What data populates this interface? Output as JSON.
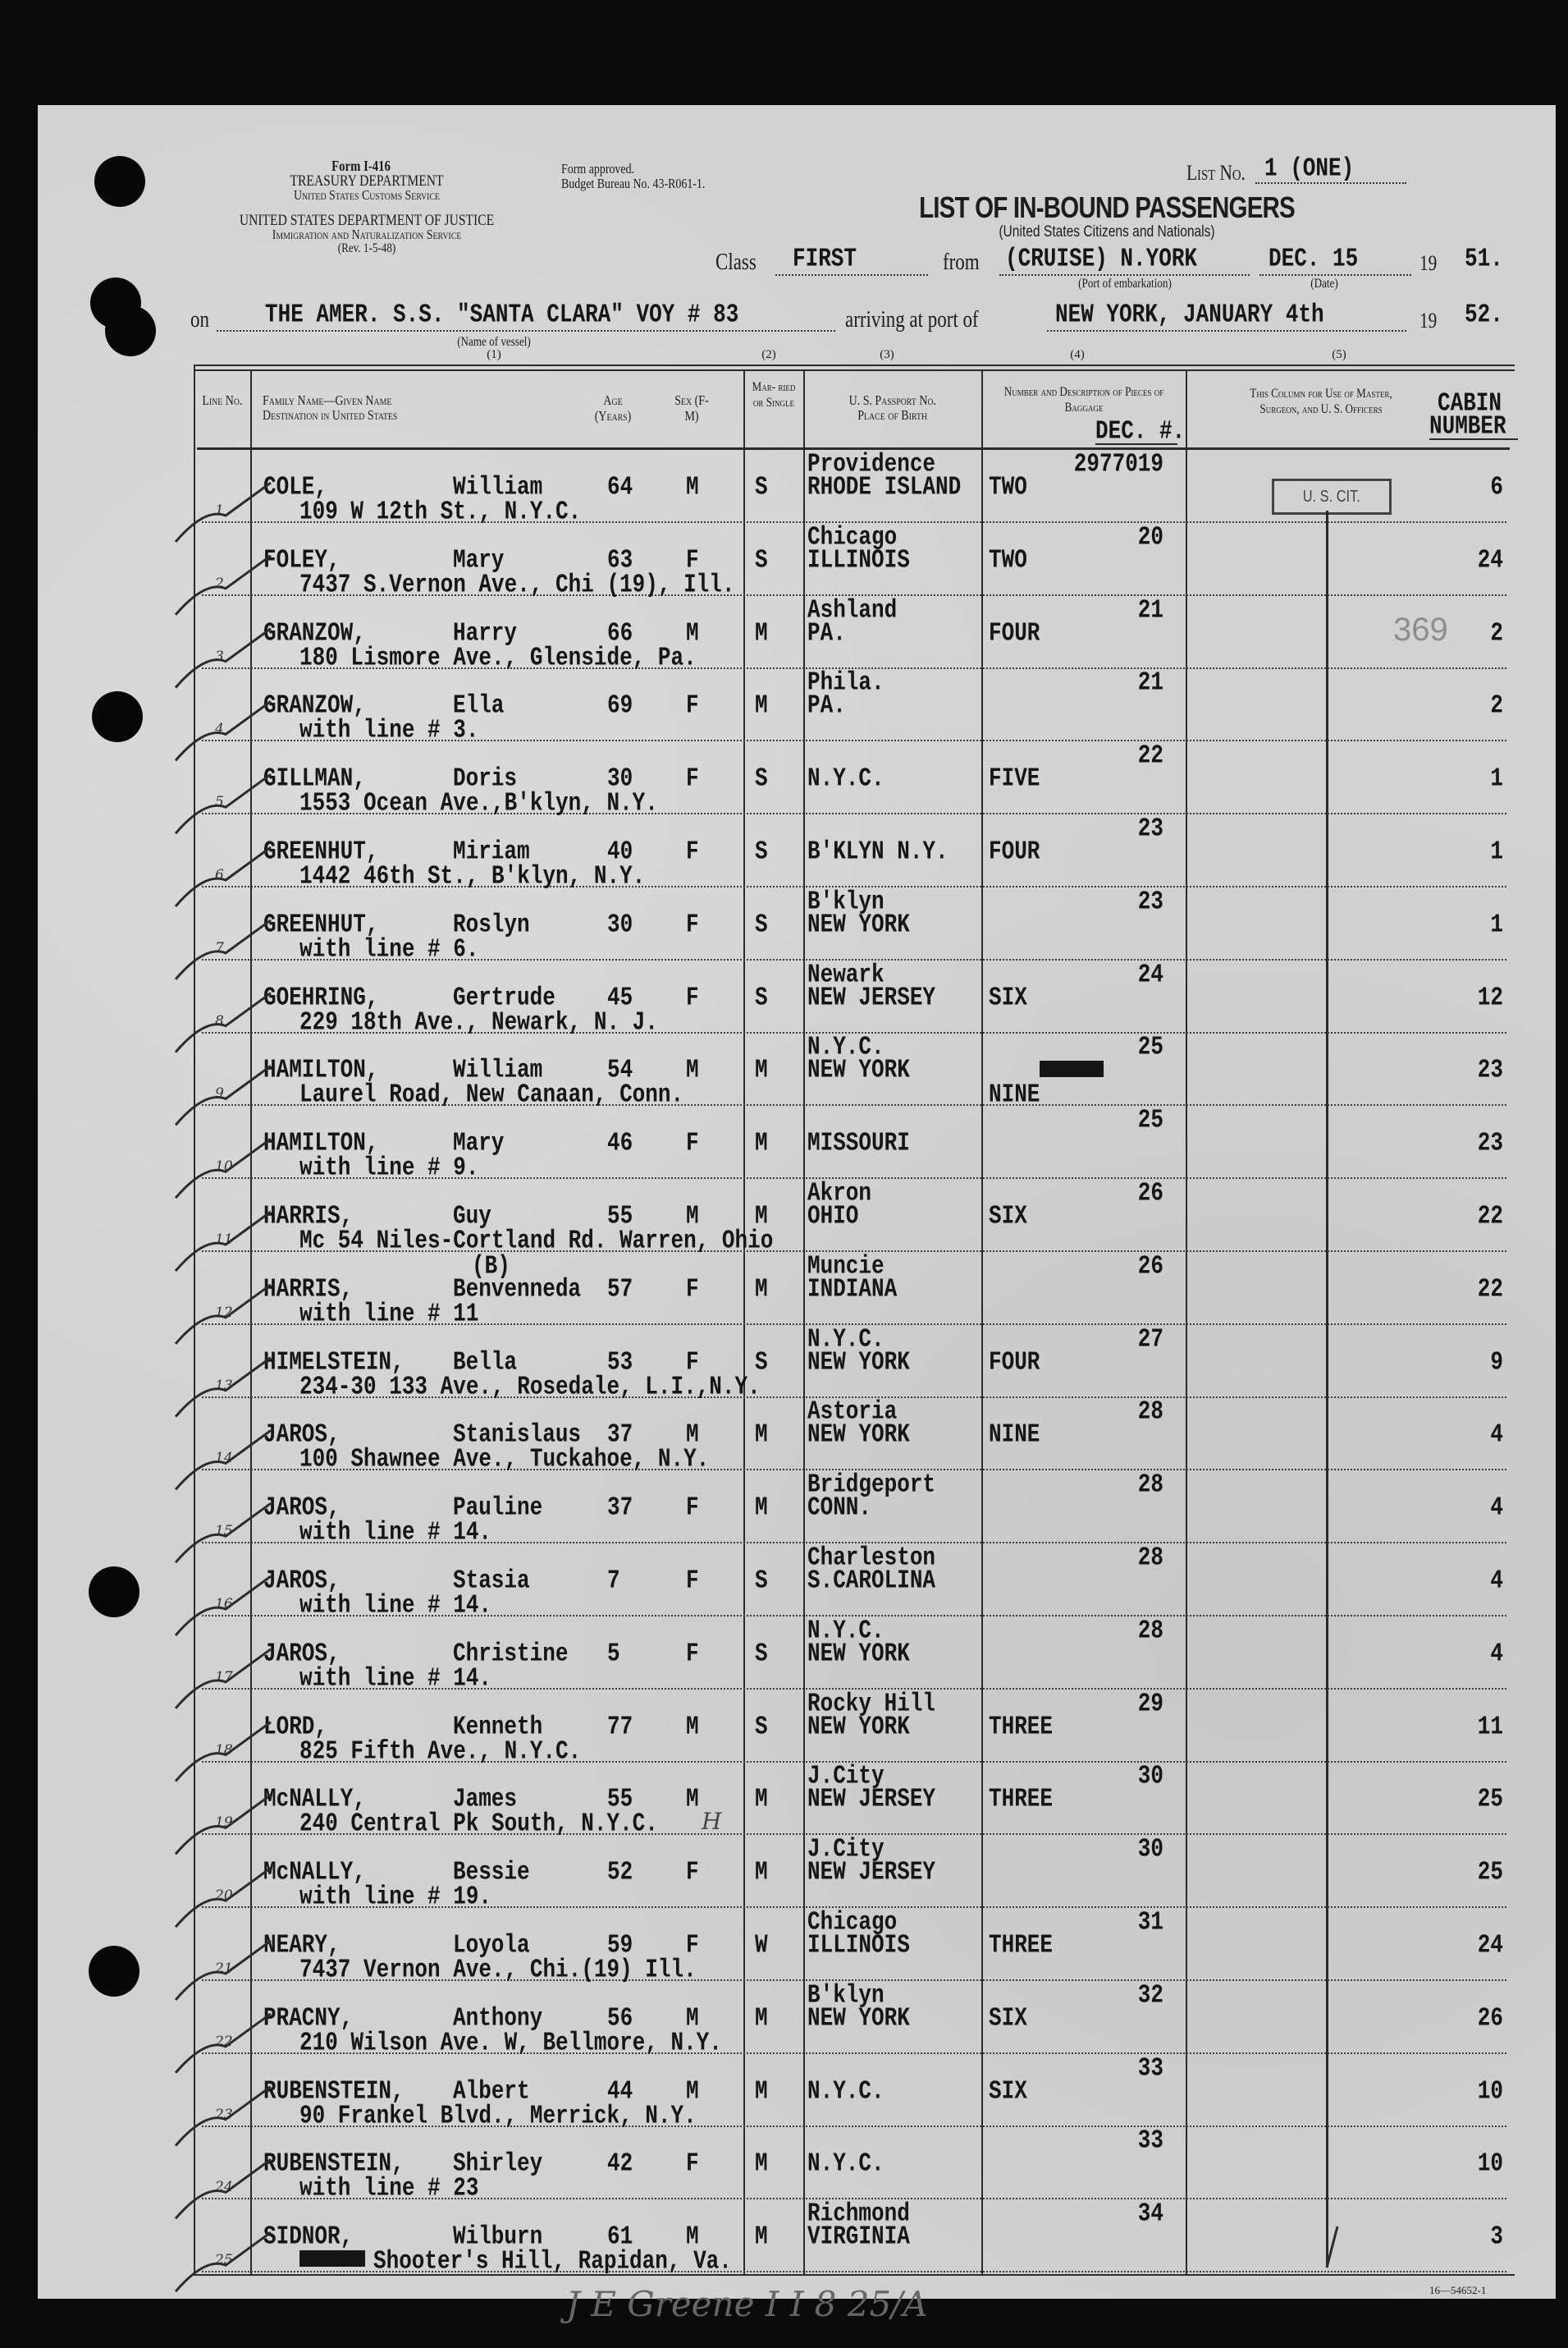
{
  "form": {
    "form_no": "Form I-416",
    "dept1": "TREASURY DEPARTMENT",
    "dept1_sub": "United States Customs Service",
    "dept2": "UNITED STATES DEPARTMENT OF JUSTICE",
    "dept2_sub": "Immigration and Naturalization Service",
    "rev": "(Rev. 1-5-48)",
    "approved": "Form approved.",
    "budget": "Budget Bureau No. 43-R061-1.",
    "list_no_label": "List No.",
    "list_no": "1 (ONE)",
    "title": "LIST OF IN-BOUND PASSENGERS",
    "subtitle": "(United States Citizens and Nationals)",
    "class_label": "Class",
    "class_value": "FIRST",
    "from_label": "from",
    "from_value": "(CRUISE) N.YORK",
    "from_date": "DEC. 15",
    "year_prefix": "19",
    "from_year": "51.",
    "port_caption": "(Port of embarkation)",
    "date_caption": "(Date)",
    "on_label": "on",
    "vessel": "THE AMER. S.S. \"SANTA CLARA\" VOY # 83",
    "vessel_caption": "(Name of vessel)",
    "arriving_label": "arriving at port of",
    "arrival": "NEW YORK, JANUARY 4th",
    "arrival_year": "52.",
    "col_numbers": [
      "(1)",
      "(2)",
      "(3)",
      "(4)",
      "(5)"
    ]
  },
  "table_headers": {
    "line": "Line No.",
    "name": "Family Name—Given Name",
    "destination": "Destination in United States",
    "age": "Age (Years)",
    "sex": "Sex (F-M)",
    "married": "Mar- ried or Single",
    "passport": "U. S. Passport No.",
    "birth": "Place of Birth",
    "baggage": "Number and Description of Pieces of Baggage",
    "baggage_typed": "DEC. #.",
    "officers": "This Column for Use of Master, Surgeon, and U. S. Officers",
    "cabin": "CABIN",
    "cabin2": "NUMBER"
  },
  "stamp": "U. S. CIT.",
  "stamp_number": "369",
  "rows": [
    {
      "line": "1",
      "family": "COLE,",
      "given": "William",
      "age": "64",
      "sex": "M",
      "marital": "S",
      "city": "Providence",
      "state": "RHODE ISLAND",
      "bag_desc": "TWO",
      "bag_no": "2977019",
      "cabin": "6",
      "address": "109 W 12th St., N.Y.C."
    },
    {
      "line": "2",
      "family": "FOLEY,",
      "given": "Mary",
      "age": "63",
      "sex": "F",
      "marital": "S",
      "city": "Chicago",
      "state": "ILLINOIS",
      "bag_desc": "TWO",
      "bag_no": "20",
      "cabin": "24",
      "address": "7437 S.Vernon Ave., Chi (19), Ill."
    },
    {
      "line": "3",
      "family": "GRANZOW,",
      "given": "Harry",
      "age": "66",
      "sex": "M",
      "marital": "M",
      "city": "Ashland",
      "state": "PA.",
      "bag_desc": "FOUR",
      "bag_no": "21",
      "cabin": "2",
      "address": "180 Lismore Ave., Glenside, Pa."
    },
    {
      "line": "4",
      "family": "GRANZOW,",
      "given": "Ella",
      "age": "69",
      "sex": "F",
      "marital": "M",
      "city": "Phila.",
      "state": "PA.",
      "bag_desc": "",
      "bag_no": "21",
      "cabin": "2",
      "address": "with line # 3."
    },
    {
      "line": "5",
      "family": "GILLMAN,",
      "given": "Doris",
      "age": "30",
      "sex": "F",
      "marital": "S",
      "city": "",
      "state": "N.Y.C.",
      "bag_desc": "FIVE",
      "bag_no": "22",
      "cabin": "1",
      "address": "1553 Ocean Ave.,B'klyn, N.Y."
    },
    {
      "line": "6",
      "family": "GREENHUT,",
      "given": "Miriam",
      "age": "40",
      "sex": "F",
      "marital": "S",
      "city": "",
      "state": "B'KLYN N.Y.",
      "bag_desc": "FOUR",
      "bag_no": "23",
      "cabin": "1",
      "address": "1442 46th St., B'klyn, N.Y."
    },
    {
      "line": "7",
      "family": "GREENHUT,",
      "given": "Roslyn",
      "age": "30",
      "sex": "F",
      "marital": "S",
      "city": "B'klyn",
      "state": "NEW YORK",
      "bag_desc": "",
      "bag_no": "23",
      "cabin": "1",
      "address": "with line # 6."
    },
    {
      "line": "8",
      "family": "GOEHRING,",
      "given": "Gertrude",
      "age": "45",
      "sex": "F",
      "marital": "S",
      "city": "Newark",
      "state": "NEW JERSEY",
      "bag_desc": "SIX",
      "bag_no": "24",
      "cabin": "12",
      "address": "229 18th Ave., Newark, N. J."
    },
    {
      "line": "9",
      "family": "HAMILTON,",
      "given": "William",
      "age": "54",
      "sex": "M",
      "marital": "M",
      "city": "N.Y.C.",
      "state": "NEW YORK",
      "bag_desc": "NINE",
      "bag_no": "25",
      "cabin": "23",
      "address": "Laurel Road, New Canaan, Conn."
    },
    {
      "line": "10",
      "family": "HAMILTON,",
      "given": "Mary",
      "age": "46",
      "sex": "F",
      "marital": "M",
      "city": "",
      "state": "MISSOURI",
      "bag_desc": "",
      "bag_no": "25",
      "cabin": "23",
      "address": "with line # 9."
    },
    {
      "line": "11",
      "family": "HARRIS,",
      "given": "Guy",
      "age": "55",
      "sex": "M",
      "marital": "M",
      "city": "Akron",
      "state": "OHIO",
      "bag_desc": "SIX",
      "bag_no": "26",
      "cabin": "22",
      "address": "Mc 54 Niles-Cortland Rd. Warren, Ohio"
    },
    {
      "line": "12",
      "family": "HARRIS,",
      "given": "Benvenneda",
      "given_note": "(B)",
      "age": "57",
      "sex": "F",
      "marital": "M",
      "city": "Muncie",
      "state": "INDIANA",
      "bag_desc": "",
      "bag_no": "26",
      "cabin": "22",
      "address": "with line # 11"
    },
    {
      "line": "13",
      "family": "HIMELSTEIN,",
      "given": "Bella",
      "age": "53",
      "sex": "F",
      "marital": "S",
      "city": "N.Y.C.",
      "state": "NEW YORK",
      "bag_desc": "FOUR",
      "bag_no": "27",
      "cabin": "9",
      "address": "234-30 133 Ave., Rosedale, L.I.,N.Y."
    },
    {
      "line": "14",
      "family": "JAROS,",
      "given": "Stanislaus",
      "age": "37",
      "sex": "M",
      "marital": "M",
      "city": "Astoria",
      "state": "NEW YORK",
      "bag_desc": "NINE",
      "bag_no": "28",
      "cabin": "4",
      "address": "100 Shawnee Ave., Tuckahoe, N.Y."
    },
    {
      "line": "15",
      "family": "JAROS,",
      "given": "Pauline",
      "age": "37",
      "sex": "F",
      "marital": "M",
      "city": "Bridgeport",
      "state": "CONN.",
      "bag_desc": "",
      "bag_no": "28",
      "cabin": "4",
      "address": "with line # 14."
    },
    {
      "line": "16",
      "family": "JAROS,",
      "given": "Stasia",
      "age": "7",
      "sex": "F",
      "marital": "S",
      "city": "Charleston",
      "state": "S.CAROLINA",
      "bag_desc": "",
      "bag_no": "28",
      "cabin": "4",
      "address": "with line # 14."
    },
    {
      "line": "17",
      "family": "JAROS,",
      "given": "Christine",
      "age": "5",
      "sex": "F",
      "marital": "S",
      "city": "N.Y.C.",
      "state": "NEW YORK",
      "bag_desc": "",
      "bag_no": "28",
      "cabin": "4",
      "address": "with line # 14."
    },
    {
      "line": "18",
      "family": "LORD,",
      "given": "Kenneth",
      "age": "77",
      "sex": "M",
      "marital": "S",
      "city": "Rocky Hill",
      "state": "NEW YORK",
      "bag_desc": "THREE",
      "bag_no": "29",
      "cabin": "11",
      "address": "825 Fifth Ave., N.Y.C."
    },
    {
      "line": "19",
      "family": "McNALLY,",
      "given": "James",
      "age": "55",
      "sex": "M",
      "marital": "M",
      "city": "J.City",
      "state": "NEW JERSEY",
      "bag_desc": "THREE",
      "bag_no": "30",
      "cabin": "25",
      "address": "240 Central Pk South, N.Y.C.",
      "hand_note": "H"
    },
    {
      "line": "20",
      "family": "McNALLY,",
      "given": "Bessie",
      "age": "52",
      "sex": "F",
      "marital": "M",
      "city": "J.City",
      "state": "NEW JERSEY",
      "bag_desc": "",
      "bag_no": "30",
      "cabin": "25",
      "address": "with line # 19."
    },
    {
      "line": "21",
      "family": "NEARY,",
      "given": "Loyola",
      "age": "59",
      "sex": "F",
      "marital": "W",
      "city": "Chicago",
      "state": "ILLINOIS",
      "bag_desc": "THREE",
      "bag_no": "31",
      "cabin": "24",
      "address": "7437 Vernon Ave., Chi.(19) Ill."
    },
    {
      "line": "22",
      "family": "PRACNY,",
      "given": "Anthony",
      "age": "56",
      "sex": "M",
      "marital": "M",
      "city": "B'klyn",
      "state": "NEW YORK",
      "bag_desc": "SIX",
      "bag_no": "32",
      "cabin": "26",
      "address": "210 Wilson Ave. W, Bellmore, N.Y."
    },
    {
      "line": "23",
      "family": "RUBENSTEIN,",
      "given": "Albert",
      "age": "44",
      "sex": "M",
      "marital": "M",
      "city": "",
      "state": "N.Y.C.",
      "bag_desc": "SIX",
      "bag_no": "33",
      "cabin": "10",
      "address": "90 Frankel Blvd., Merrick, N.Y."
    },
    {
      "line": "24",
      "family": "RUBENSTEIN,",
      "given": "Shirley",
      "age": "42",
      "sex": "F",
      "marital": "M",
      "city": "",
      "state": "N.Y.C.",
      "bag_desc": "",
      "bag_no": "33",
      "cabin": "10",
      "address": "with line # 23"
    },
    {
      "line": "25",
      "family": "SIDNOR,",
      "given": "Wilburn",
      "age": "61",
      "sex": "M",
      "marital": "M",
      "city": "Richmond",
      "state": "VIRGINIA",
      "bag_desc": "",
      "bag_no": "34",
      "cabin": "3",
      "address": "Shooter's Hill, Rapidan, Va.",
      "address_struck": true
    }
  ],
  "footer": {
    "signature": "J E Greene I I 8 25/A",
    "print_code": "16—54652-1"
  },
  "colors": {
    "paper": "#d2d2d2",
    "ink": "#161616",
    "surround": "#0b0b0b"
  }
}
